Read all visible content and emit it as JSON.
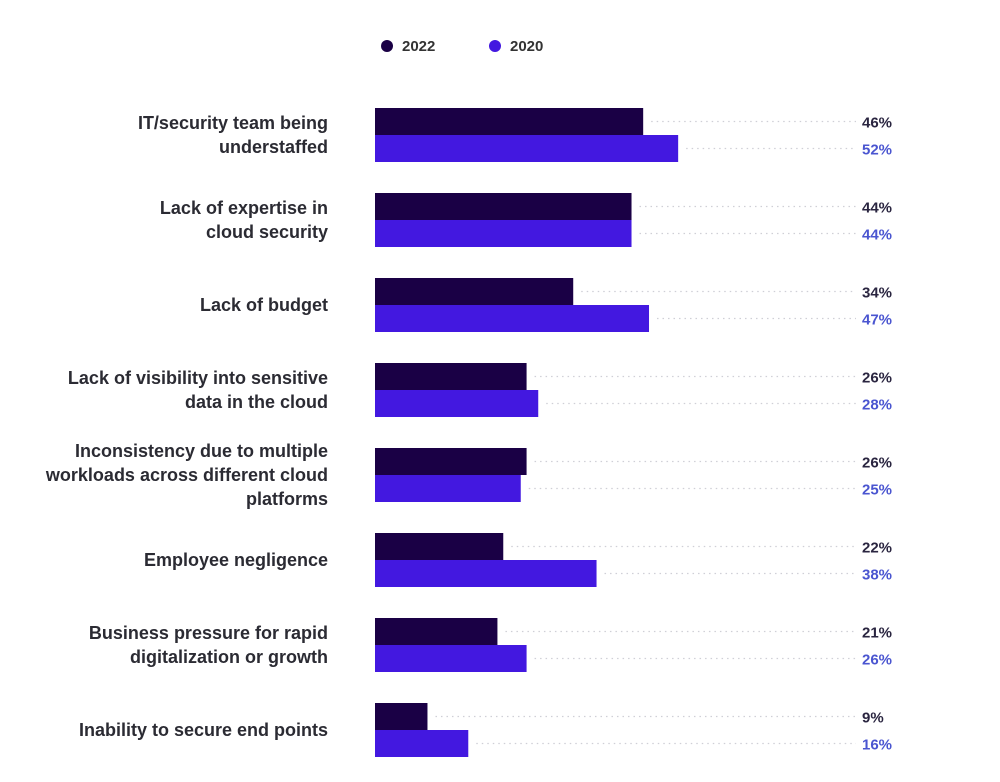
{
  "chart_data": {
    "type": "bar",
    "orientation": "horizontal",
    "title": "",
    "xlabel": "",
    "ylabel": "",
    "xlim": [
      0,
      100
    ],
    "legend_position": "top",
    "categories": [
      [
        "IT/security team being",
        "understaffed"
      ],
      [
        "Lack of expertise in",
        "cloud security"
      ],
      [
        "Lack of budget"
      ],
      [
        "Lack of visibility into sensitive",
        "data in the cloud"
      ],
      [
        "Inconsistency due to multiple",
        "workloads across different cloud",
        "platforms"
      ],
      [
        "Employee negligence"
      ],
      [
        "Business pressure for rapid",
        "digitalization or growth"
      ],
      [
        "Inability to secure end points"
      ]
    ],
    "series": [
      {
        "name": "2022",
        "color": "#1a0045",
        "label_color": "#2a2540",
        "values": [
          46,
          44,
          34,
          26,
          26,
          22,
          21,
          9
        ]
      },
      {
        "name": "2020",
        "color": "#4318e0",
        "label_color": "#4a55d0",
        "values": [
          52,
          44,
          47,
          28,
          25,
          38,
          26,
          16
        ]
      }
    ],
    "value_suffix": "%"
  }
}
